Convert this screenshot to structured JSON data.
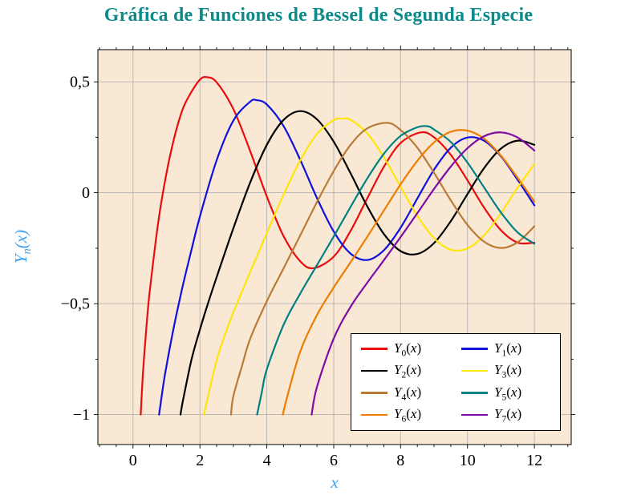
{
  "styles": {
    "title_color": "#0d8a8a",
    "axis_label_color": "#3aa0f2",
    "plot_bg": "#f8e8d4",
    "grid_color": "#b4b4b4",
    "frame_color": "#000000",
    "tick_color": "#000000",
    "legend_bg": "#ffffff"
  },
  "chart_data": {
    "type": "line",
    "title": "Gráfica de Funciones de Bessel de Segunda Especie",
    "xlabel": "x",
    "ylabel": "Y_n(x)",
    "xlim": [
      -1.05,
      13.1
    ],
    "ylim": [
      -1.135,
      0.645
    ],
    "x_ticks": [
      0,
      2,
      4,
      6,
      8,
      10,
      12
    ],
    "x_tick_labels": [
      "0",
      "2",
      "4",
      "6",
      "8",
      "10",
      "12"
    ],
    "y_ticks": [
      0.5,
      0,
      -0.5,
      -1
    ],
    "y_tick_labels": [
      "0,5",
      "0",
      "−0,5",
      "−1"
    ],
    "x_minor_step": 0.5,
    "y_minor_step": 0.25,
    "grid": true,
    "legend_position": "lower right",
    "series": [
      {
        "name": "Y_0(x)",
        "color": "#ea0c0c",
        "points": [
          [
            0.23,
            -1.0
          ],
          [
            0.3,
            -0.807
          ],
          [
            0.4,
            -0.606
          ],
          [
            0.5,
            -0.445
          ],
          [
            0.75,
            -0.137
          ],
          [
            1.0,
            0.088
          ],
          [
            1.25,
            0.258
          ],
          [
            1.5,
            0.382
          ],
          [
            1.75,
            0.455
          ],
          [
            2.0,
            0.51
          ],
          [
            2.2,
            0.521
          ],
          [
            2.5,
            0.498
          ],
          [
            3.0,
            0.377
          ],
          [
            3.5,
            0.189
          ],
          [
            4.0,
            -0.017
          ],
          [
            4.5,
            -0.195
          ],
          [
            5.0,
            -0.309
          ],
          [
            5.4,
            -0.34
          ],
          [
            6.0,
            -0.288
          ],
          [
            6.5,
            -0.173
          ],
          [
            7.0,
            -0.026
          ],
          [
            7.5,
            0.117
          ],
          [
            8.0,
            0.224
          ],
          [
            8.6,
            0.272
          ],
          [
            9.0,
            0.25
          ],
          [
            9.5,
            0.171
          ],
          [
            10.0,
            0.056
          ],
          [
            10.5,
            -0.068
          ],
          [
            11.0,
            -0.169
          ],
          [
            11.5,
            -0.225
          ],
          [
            12.0,
            -0.225
          ]
        ]
      },
      {
        "name": "Y_1(x)",
        "color": "#1010dd",
        "points": [
          [
            0.78,
            -1.0
          ],
          [
            0.9,
            -0.873
          ],
          [
            1.0,
            -0.781
          ],
          [
            1.25,
            -0.584
          ],
          [
            1.5,
            -0.412
          ],
          [
            1.75,
            -0.257
          ],
          [
            2.0,
            -0.107
          ],
          [
            2.5,
            0.146
          ],
          [
            3.0,
            0.325
          ],
          [
            3.5,
            0.41
          ],
          [
            3.7,
            0.417
          ],
          [
            4.0,
            0.398
          ],
          [
            4.5,
            0.301
          ],
          [
            5.0,
            0.148
          ],
          [
            5.5,
            -0.024
          ],
          [
            6.0,
            -0.175
          ],
          [
            6.5,
            -0.274
          ],
          [
            7.0,
            -0.303
          ],
          [
            7.5,
            -0.259
          ],
          [
            8.0,
            -0.158
          ],
          [
            8.5,
            -0.026
          ],
          [
            9.0,
            0.104
          ],
          [
            9.5,
            0.203
          ],
          [
            10.0,
            0.249
          ],
          [
            10.5,
            0.234
          ],
          [
            11.0,
            0.164
          ],
          [
            11.5,
            0.058
          ],
          [
            12.0,
            -0.057
          ]
        ]
      },
      {
        "name": "Y_2(x)",
        "color": "#000000",
        "points": [
          [
            1.42,
            -1.0
          ],
          [
            1.5,
            -0.932
          ],
          [
            1.75,
            -0.752
          ],
          [
            2.0,
            -0.617
          ],
          [
            2.25,
            -0.495
          ],
          [
            2.5,
            -0.381
          ],
          [
            3.0,
            -0.16
          ],
          [
            3.5,
            0.045
          ],
          [
            4.0,
            0.216
          ],
          [
            4.5,
            0.328
          ],
          [
            5.0,
            0.368
          ],
          [
            5.5,
            0.331
          ],
          [
            6.0,
            0.23
          ],
          [
            6.5,
            0.089
          ],
          [
            7.0,
            -0.061
          ],
          [
            7.5,
            -0.186
          ],
          [
            8.0,
            -0.263
          ],
          [
            8.5,
            -0.276
          ],
          [
            9.0,
            -0.227
          ],
          [
            9.5,
            -0.128
          ],
          [
            10.0,
            -0.006
          ],
          [
            10.5,
            0.112
          ],
          [
            11.0,
            0.199
          ],
          [
            11.5,
            0.235
          ],
          [
            12.0,
            0.216
          ]
        ]
      },
      {
        "name": "Y_3(x)",
        "color": "#ffe60a",
        "points": [
          [
            2.13,
            -1.0
          ],
          [
            2.2,
            -0.946
          ],
          [
            2.5,
            -0.756
          ],
          [
            2.75,
            -0.64
          ],
          [
            3.0,
            -0.539
          ],
          [
            3.5,
            -0.358
          ],
          [
            4.0,
            -0.182
          ],
          [
            4.5,
            -0.009
          ],
          [
            5.0,
            0.146
          ],
          [
            5.5,
            0.265
          ],
          [
            6.0,
            0.328
          ],
          [
            6.25,
            0.334
          ],
          [
            6.5,
            0.329
          ],
          [
            7.0,
            0.268
          ],
          [
            7.5,
            0.16
          ],
          [
            8.0,
            0.027
          ],
          [
            8.5,
            -0.104
          ],
          [
            9.0,
            -0.205
          ],
          [
            9.5,
            -0.257
          ],
          [
            10.0,
            -0.251
          ],
          [
            10.5,
            -0.191
          ],
          [
            11.0,
            -0.092
          ],
          [
            11.5,
            0.024
          ],
          [
            12.0,
            0.129
          ]
        ]
      },
      {
        "name": "Y_4(x)",
        "color": "#b97b35",
        "points": [
          [
            2.93,
            -1.0
          ],
          [
            3.0,
            -0.917
          ],
          [
            3.25,
            -0.785
          ],
          [
            3.5,
            -0.66
          ],
          [
            4.0,
            -0.489
          ],
          [
            4.5,
            -0.341
          ],
          [
            5.0,
            -0.192
          ],
          [
            5.5,
            -0.042
          ],
          [
            6.0,
            0.098
          ],
          [
            6.5,
            0.215
          ],
          [
            7.0,
            0.29
          ],
          [
            7.6,
            0.315
          ],
          [
            8.0,
            0.283
          ],
          [
            8.5,
            0.203
          ],
          [
            9.0,
            0.09
          ],
          [
            9.5,
            -0.034
          ],
          [
            10.0,
            -0.145
          ],
          [
            10.5,
            -0.221
          ],
          [
            11.0,
            -0.249
          ],
          [
            11.5,
            -0.223
          ],
          [
            12.0,
            -0.151
          ]
        ]
      },
      {
        "name": "Y_5(x)",
        "color": "#008080",
        "points": [
          [
            3.71,
            -1.0
          ],
          [
            3.85,
            -0.9
          ],
          [
            4.0,
            -0.796
          ],
          [
            4.5,
            -0.596
          ],
          [
            5.0,
            -0.454
          ],
          [
            5.5,
            -0.326
          ],
          [
            6.0,
            -0.197
          ],
          [
            6.5,
            -0.065
          ],
          [
            7.0,
            0.064
          ],
          [
            7.5,
            0.176
          ],
          [
            8.0,
            0.256
          ],
          [
            8.5,
            0.295
          ],
          [
            8.8,
            0.3
          ],
          [
            9.0,
            0.285
          ],
          [
            9.5,
            0.229
          ],
          [
            10.0,
            0.136
          ],
          [
            10.5,
            0.023
          ],
          [
            11.0,
            -0.089
          ],
          [
            11.5,
            -0.179
          ],
          [
            12.0,
            -0.23
          ]
        ]
      },
      {
        "name": "Y_6(x)",
        "color": "#f07c00",
        "points": [
          [
            4.48,
            -1.0
          ],
          [
            4.6,
            -0.925
          ],
          [
            5.0,
            -0.715
          ],
          [
            5.5,
            -0.551
          ],
          [
            6.0,
            -0.427
          ],
          [
            6.5,
            -0.314
          ],
          [
            7.0,
            -0.199
          ],
          [
            7.5,
            -0.08
          ],
          [
            8.0,
            0.038
          ],
          [
            8.5,
            0.144
          ],
          [
            9.0,
            0.227
          ],
          [
            9.5,
            0.275
          ],
          [
            10.0,
            0.28
          ],
          [
            10.5,
            0.243
          ],
          [
            11.0,
            0.167
          ],
          [
            11.5,
            0.067
          ],
          [
            12.0,
            -0.04
          ]
        ]
      },
      {
        "name": "Y_7(x)",
        "color": "#7d0ca6",
        "points": [
          [
            5.34,
            -1.0
          ],
          [
            5.5,
            -0.875
          ],
          [
            6.0,
            -0.657
          ],
          [
            6.5,
            -0.515
          ],
          [
            7.0,
            -0.406
          ],
          [
            7.5,
            -0.304
          ],
          [
            8.0,
            -0.2
          ],
          [
            8.5,
            -0.092
          ],
          [
            9.0,
            0.017
          ],
          [
            9.5,
            0.118
          ],
          [
            10.0,
            0.201
          ],
          [
            10.5,
            0.255
          ],
          [
            11.0,
            0.272
          ],
          [
            11.5,
            0.249
          ],
          [
            12.0,
            0.19
          ]
        ]
      }
    ]
  }
}
